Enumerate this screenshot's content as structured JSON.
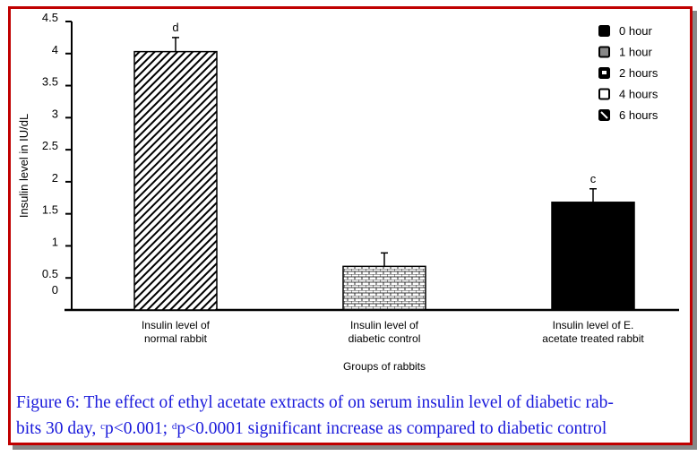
{
  "chart_data": {
    "type": "bar",
    "title": "",
    "xlabel": "Groups  of rabbits",
    "ylabel": "Insulin level in IU/dL",
    "ylim": [
      0,
      4.5
    ],
    "yticks": [
      "0",
      "0.5",
      "1",
      "1.5",
      "2",
      "2.5",
      "3",
      "3.5",
      "4",
      "4.5"
    ],
    "categories": [
      [
        "Insulin level of",
        "normal rabbit"
      ],
      [
        "Insulin level of",
        "diabetic control"
      ],
      [
        "Insulin level of E.",
        "acetate treated rabbit"
      ]
    ],
    "values": [
      4.03,
      0.68,
      1.68
    ],
    "errors": [
      0.22,
      0.21,
      0.21
    ],
    "annotations": [
      "d",
      "",
      "c"
    ],
    "patterns": [
      "diagonal",
      "brick",
      "solid"
    ],
    "legend": {
      "placement": "top-right",
      "entries": [
        "0 hour",
        "1 hour",
        "2 hours",
        "4 hours",
        "6 hours"
      ]
    },
    "grid": false
  },
  "caption": {
    "line1": "Figure 6: The effect of ethyl acetate extracts of on serum insulin level of diabetic rab-",
    "line2a": "bits 30 day, ",
    "sup_c": "c",
    "line2b": "p<0.001; ",
    "sup_d": "d",
    "line2c": "p<0.0001 significant increase as compared to diabetic control"
  }
}
